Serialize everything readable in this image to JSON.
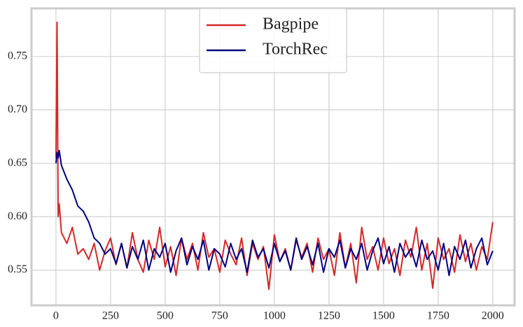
{
  "chart_data": {
    "type": "line",
    "x": [
      0,
      5,
      10,
      15,
      25,
      50,
      75,
      100,
      125,
      150,
      175,
      200,
      225,
      250,
      275,
      300,
      325,
      350,
      375,
      400,
      425,
      450,
      475,
      500,
      525,
      550,
      575,
      600,
      625,
      650,
      675,
      700,
      725,
      750,
      775,
      800,
      825,
      850,
      875,
      900,
      925,
      950,
      975,
      1000,
      1025,
      1050,
      1075,
      1100,
      1125,
      1150,
      1175,
      1200,
      1225,
      1250,
      1275,
      1300,
      1325,
      1350,
      1375,
      1400,
      1425,
      1450,
      1475,
      1500,
      1525,
      1550,
      1575,
      1600,
      1625,
      1650,
      1675,
      1700,
      1725,
      1750,
      1775,
      1800,
      1825,
      1850,
      1875,
      1900,
      1925,
      1950,
      1975,
      2000
    ],
    "series": [
      {
        "name": "Bagpipe",
        "color": "#d62728",
        "values": [
          0.655,
          0.782,
          0.6,
          0.612,
          0.585,
          0.575,
          0.59,
          0.565,
          0.57,
          0.56,
          0.575,
          0.55,
          0.568,
          0.58,
          0.555,
          0.575,
          0.552,
          0.585,
          0.56,
          0.548,
          0.578,
          0.56,
          0.59,
          0.553,
          0.572,
          0.545,
          0.58,
          0.56,
          0.575,
          0.55,
          0.585,
          0.562,
          0.57,
          0.548,
          0.578,
          0.565,
          0.555,
          0.58,
          0.545,
          0.575,
          0.56,
          0.572,
          0.532,
          0.583,
          0.558,
          0.57,
          0.55,
          0.578,
          0.562,
          0.575,
          0.548,
          0.58,
          0.56,
          0.57,
          0.545,
          0.585,
          0.552,
          0.575,
          0.538,
          0.59,
          0.56,
          0.572,
          0.55,
          0.58,
          0.556,
          0.57,
          0.545,
          0.578,
          0.562,
          0.59,
          0.55,
          0.575,
          0.533,
          0.58,
          0.56,
          0.57,
          0.548,
          0.583,
          0.558,
          0.575,
          0.55,
          0.572,
          0.56,
          0.595
        ]
      },
      {
        "name": "TorchRec",
        "color": "#000080",
        "values": [
          0.65,
          0.66,
          0.655,
          0.662,
          0.648,
          0.635,
          0.625,
          0.61,
          0.605,
          0.595,
          0.58,
          0.575,
          0.565,
          0.57,
          0.556,
          0.575,
          0.552,
          0.572,
          0.56,
          0.578,
          0.55,
          0.57,
          0.562,
          0.575,
          0.548,
          0.568,
          0.58,
          0.555,
          0.572,
          0.56,
          0.578,
          0.55,
          0.57,
          0.565,
          0.553,
          0.575,
          0.56,
          0.57,
          0.548,
          0.578,
          0.562,
          0.57,
          0.552,
          0.575,
          0.558,
          0.568,
          0.55,
          0.58,
          0.56,
          0.572,
          0.555,
          0.575,
          0.548,
          0.57,
          0.562,
          0.578,
          0.552,
          0.57,
          0.56,
          0.575,
          0.55,
          0.568,
          0.58,
          0.556,
          0.572,
          0.548,
          0.575,
          0.562,
          0.57,
          0.553,
          0.578,
          0.56,
          0.568,
          0.55,
          0.575,
          0.545,
          0.572,
          0.56,
          0.578,
          0.552,
          0.57,
          0.58,
          0.555,
          0.568
        ]
      }
    ],
    "xlim": [
      -112,
      2100
    ],
    "ylim": [
      0.517,
      0.795
    ],
    "xticks": [
      0,
      250,
      500,
      750,
      1000,
      1250,
      1500,
      1750,
      2000
    ],
    "yticks": [
      0.55,
      {
        "value": 0.6,
        "label": "0.60"
      },
      0.65,
      {
        "value": 0.7,
        "label": "0.70"
      },
      0.75
    ],
    "grid": true,
    "legend": "upper center"
  }
}
